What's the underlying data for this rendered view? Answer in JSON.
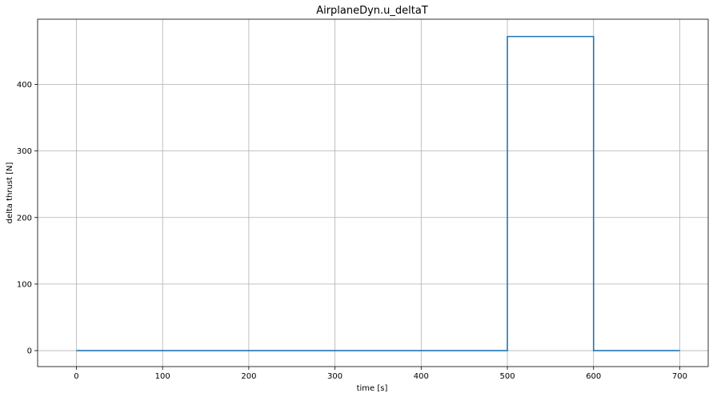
{
  "chart_data": {
    "type": "line",
    "title": "AirplaneDyn.u_deltaT",
    "xlabel": "time [s]",
    "ylabel": "delta thrust [N]",
    "xlim": [
      -45,
      733
    ],
    "ylim": [
      -24,
      498
    ],
    "xticks": [
      0,
      100,
      200,
      300,
      400,
      500,
      600,
      700
    ],
    "yticks": [
      0,
      100,
      200,
      300,
      400
    ],
    "grid": true,
    "series": [
      {
        "color": "#1f77b4",
        "x": [
          0,
          500,
          500,
          600,
          600,
          700
        ],
        "y": [
          0,
          0,
          472,
          472,
          0,
          0
        ]
      }
    ]
  }
}
